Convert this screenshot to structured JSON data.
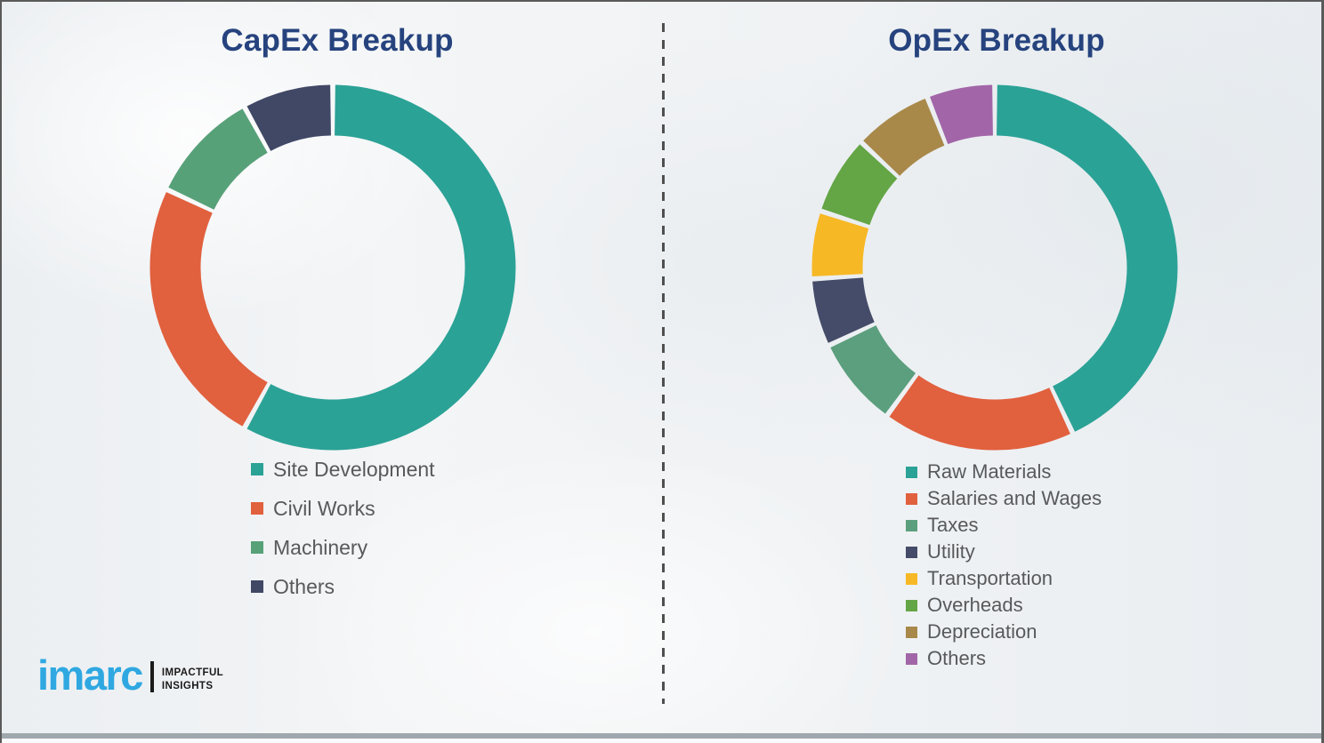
{
  "chart_data": [
    {
      "type": "pie",
      "subtype": "donut",
      "title": "CapEx Breakup",
      "categories": [
        "Site Development",
        "Civil Works",
        "Machinery",
        "Others"
      ],
      "values": [
        58,
        24,
        10,
        8
      ],
      "colors": [
        "#2BA296",
        "#E1603E",
        "#57A179",
        "#414866"
      ],
      "start_angle_deg": 0,
      "direction": "clockwise",
      "legend_position": "below-left"
    },
    {
      "type": "pie",
      "subtype": "donut",
      "title": "OpEx Breakup",
      "categories": [
        "Raw Materials",
        "Salaries and Wages",
        "Taxes",
        "Utility",
        "Transportation",
        "Overheads",
        "Depreciation",
        "Others"
      ],
      "values": [
        43,
        17,
        8,
        6,
        6,
        7,
        7,
        6
      ],
      "colors": [
        "#2BA296",
        "#E1603E",
        "#5C9F7E",
        "#454C69",
        "#F7B825",
        "#64A546",
        "#A8894A",
        "#A266A8"
      ],
      "start_angle_deg": 0,
      "direction": "clockwise",
      "legend_position": "below-left"
    }
  ],
  "logo": {
    "brand": "imarc",
    "tagline_line1": "IMPACTFUL",
    "tagline_line2": "INSIGHTS"
  },
  "theme": {
    "title_color": "#26437E",
    "legend_text_color": "#58595B",
    "brand_blue": "#2FA8E1"
  }
}
